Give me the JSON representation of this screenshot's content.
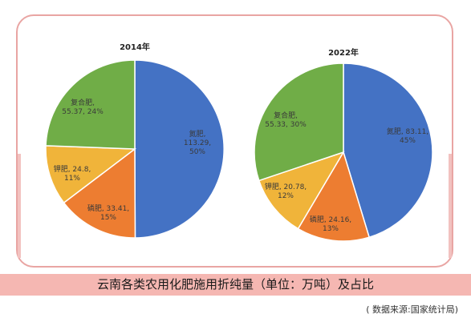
{
  "figure": {
    "caption": "云南各类农用化肥施用折纯量（单位：万吨）及占比",
    "source": "( 数据来源:国家统计局)"
  },
  "chart_data": [
    {
      "type": "pie",
      "title": "2014年",
      "slices": [
        {
          "name": "氮肥",
          "value": 113.29,
          "percent": "50%",
          "color": "#4472c4",
          "label_lines": [
            "氮肥,",
            "113.29,",
            "50%"
          ]
        },
        {
          "name": "磷肥",
          "value": 33.41,
          "percent": "15%",
          "color": "#ed7d31",
          "label_lines": [
            "磷肥, 33.41,",
            "15%"
          ]
        },
        {
          "name": "钾肥",
          "value": 24.8,
          "percent": "11%",
          "color": "#f0b43a",
          "label_lines": [
            "钾肥, 24.8,",
            "11%"
          ]
        },
        {
          "name": "复合肥",
          "value": 55.37,
          "percent": "24%",
          "color": "#70ad47",
          "label_lines": [
            "复合肥,",
            "55.37, 24%"
          ]
        }
      ]
    },
    {
      "type": "pie",
      "title": "2022年",
      "slices": [
        {
          "name": "氮肥",
          "value": 83.11,
          "percent": "45%",
          "color": "#4472c4",
          "label_lines": [
            "氮肥, 83.11,",
            "45%"
          ]
        },
        {
          "name": "磷肥",
          "value": 24.16,
          "percent": "13%",
          "color": "#ed7d31",
          "label_lines": [
            "磷肥, 24.16,",
            "13%"
          ]
        },
        {
          "name": "钾肥",
          "value": 20.78,
          "percent": "12%",
          "color": "#f0b43a",
          "label_lines": [
            "钾肥, 20.78,",
            "12%"
          ]
        },
        {
          "name": "复合肥",
          "value": 55.33,
          "percent": "30%",
          "color": "#70ad47",
          "label_lines": [
            "复合肥,",
            "55.33, 30%"
          ]
        }
      ]
    }
  ]
}
